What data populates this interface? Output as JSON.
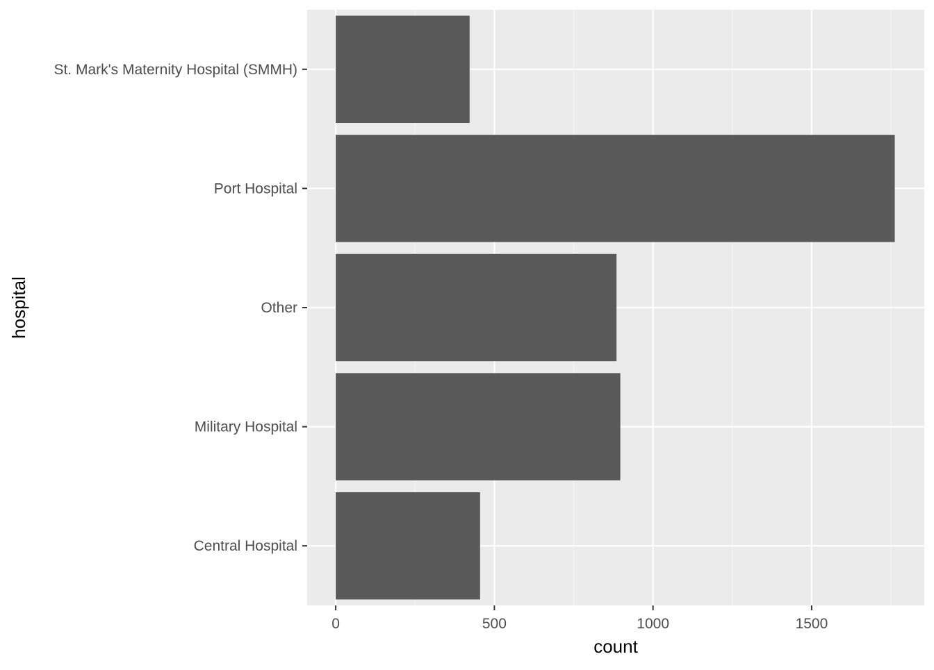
{
  "chart_data": {
    "type": "bar",
    "orientation": "horizontal",
    "categories": [
      "Central Hospital",
      "Military Hospital",
      "Other",
      "Port Hospital",
      "St. Mark's Maternity Hospital (SMMH)"
    ],
    "values": [
      455,
      897,
      885,
      1762,
      422
    ],
    "xlabel": "count",
    "ylabel": "hospital",
    "xlim": [
      -90,
      1855
    ],
    "xticks": [
      0,
      500,
      1000,
      1500
    ],
    "xtick_labels": [
      "0",
      "500",
      "1000",
      "1500"
    ],
    "grid": true,
    "legend": "none",
    "colors": {
      "bar": "#595959",
      "panel": "#ebebeb",
      "grid_major": "#ffffff",
      "grid_minor": "#f5f5f5",
      "tick_text": "#4d4d4d",
      "axis_title": "#000000",
      "tick_mark": "#333333"
    }
  }
}
